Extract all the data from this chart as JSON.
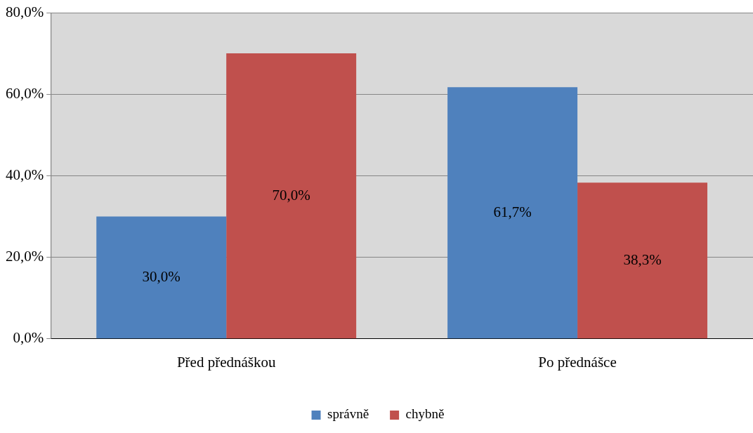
{
  "chart_data": {
    "type": "bar",
    "categories": [
      "Před přednáškou",
      "Po přednášce"
    ],
    "series": [
      {
        "name": "správně",
        "color": "#4f81bd",
        "values": [
          30.0,
          61.7
        ],
        "value_labels": [
          "30,0%",
          "61,7%"
        ]
      },
      {
        "name": "chybně",
        "color": "#c0504d",
        "values": [
          70.0,
          38.3
        ],
        "value_labels": [
          "70,0%",
          "38,3%"
        ]
      }
    ],
    "ylim": [
      0,
      80
    ],
    "yticks": [
      {
        "value": 0,
        "label": "0,0%"
      },
      {
        "value": 20,
        "label": "20,0%"
      },
      {
        "value": 40,
        "label": "40,0%"
      },
      {
        "value": 60,
        "label": "60,0%"
      },
      {
        "value": 80,
        "label": "80,0%"
      }
    ],
    "grid": "y",
    "legend": "bottom"
  }
}
